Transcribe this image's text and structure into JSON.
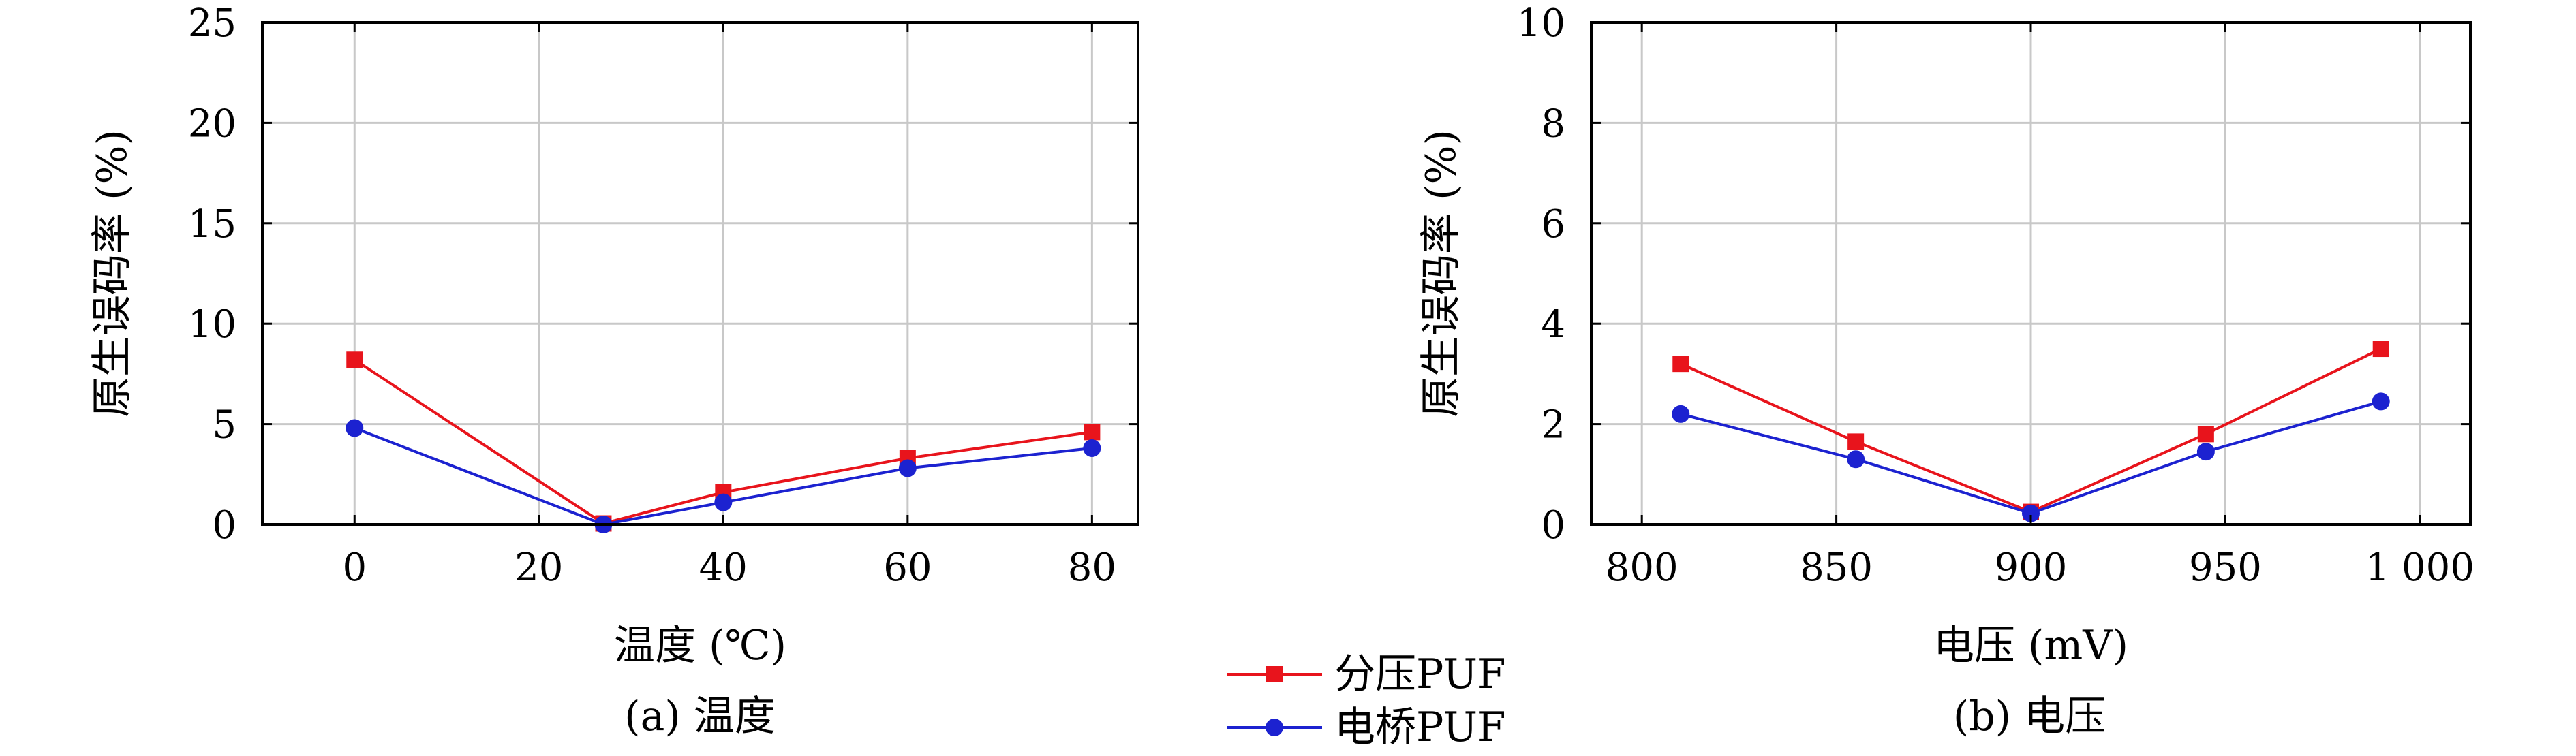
{
  "chart_data": [
    {
      "type": "line",
      "caption": "(a) 温度",
      "xlabel": "温度 (℃)",
      "ylabel": "原生误码率 (%)",
      "xlim": [
        -10,
        85
      ],
      "ylim": [
        0,
        25
      ],
      "x_ticks": [
        0,
        20,
        40,
        60,
        80
      ],
      "x_tick_labels": [
        "0",
        "20",
        "40",
        "60",
        "80"
      ],
      "y_ticks": [
        0,
        5,
        10,
        15,
        20,
        25
      ],
      "y_tick_labels": [
        "0",
        "5",
        "10",
        "15",
        "20",
        "25"
      ],
      "grid": true,
      "series": [
        {
          "name": "分压PUF",
          "color": "#e8141c",
          "marker": "square",
          "x": [
            0,
            27,
            40,
            60,
            80
          ],
          "y": [
            8.2,
            0.05,
            1.6,
            3.3,
            4.6
          ]
        },
        {
          "name": "电桥PUF",
          "color": "#1c22d0",
          "marker": "circle",
          "x": [
            0,
            27,
            40,
            60,
            80
          ],
          "y": [
            4.8,
            0.0,
            1.1,
            2.8,
            3.8
          ]
        }
      ]
    },
    {
      "type": "line",
      "caption": "(b) 电压",
      "xlabel": "电压 (mV)",
      "ylabel": "原生误码率 (%)",
      "xlim": [
        787,
        1013
      ],
      "ylim": [
        0,
        10
      ],
      "x_ticks": [
        800,
        850,
        900,
        950,
        1000
      ],
      "x_tick_labels": [
        "800",
        "850",
        "900",
        "950",
        "1 000"
      ],
      "y_ticks": [
        0,
        2,
        4,
        6,
        8,
        10
      ],
      "y_tick_labels": [
        "0",
        "2",
        "4",
        "6",
        "8",
        "10"
      ],
      "grid": true,
      "series": [
        {
          "name": "分压PUF",
          "color": "#e8141c",
          "marker": "square",
          "x": [
            810,
            855,
            900,
            945,
            990
          ],
          "y": [
            3.2,
            1.65,
            0.25,
            1.8,
            3.5
          ]
        },
        {
          "name": "电桥PUF",
          "color": "#1c22d0",
          "marker": "circle",
          "x": [
            810,
            855,
            900,
            945,
            990
          ],
          "y": [
            2.2,
            1.3,
            0.22,
            1.45,
            2.45
          ]
        }
      ]
    }
  ],
  "legend": {
    "placement": "bottom-center",
    "items": [
      {
        "label": "分压PUF",
        "color": "#e8141c",
        "marker": "square"
      },
      {
        "label": "电桥PUF",
        "color": "#1c22d0",
        "marker": "circle"
      }
    ]
  }
}
